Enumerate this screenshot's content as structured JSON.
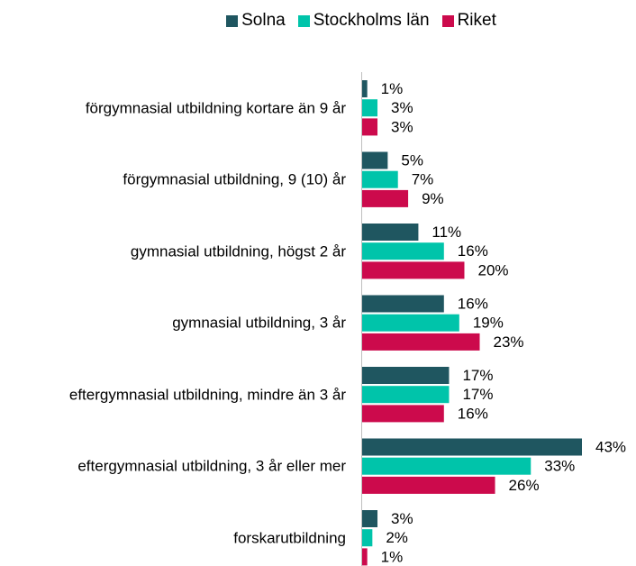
{
  "chart_data": {
    "type": "bar",
    "orientation": "horizontal",
    "categories": [
      "förgymnasial utbildning kortare än 9 år",
      "förgymnasial utbildning, 9 (10) år",
      "gymnasial utbildning, högst 2 år",
      "gymnasial utbildning, 3 år",
      "eftergymnasial utbildning, mindre än 3 år",
      "eftergymnasial utbildning, 3 år eller mer",
      "forskarutbildning"
    ],
    "series": [
      {
        "name": "Solna",
        "color": "#1f5660",
        "values": [
          1,
          5,
          11,
          16,
          17,
          43,
          3
        ],
        "value_labels": [
          "1%",
          "5%",
          "11%",
          "16%",
          "17%",
          "43%",
          "3%"
        ]
      },
      {
        "name": "Stockholms län",
        "color": "#00c4aa",
        "values": [
          3,
          7,
          16,
          19,
          17,
          33,
          2
        ],
        "value_labels": [
          "3%",
          "7%",
          "16%",
          "19%",
          "17%",
          "33%",
          "2%"
        ]
      },
      {
        "name": "Riket",
        "color": "#cc0a4c",
        "values": [
          3,
          9,
          20,
          23,
          16,
          26,
          1
        ],
        "value_labels": [
          "3%",
          "9%",
          "20%",
          "23%",
          "16%",
          "26%",
          "1%"
        ]
      }
    ],
    "legend": "top"
  }
}
